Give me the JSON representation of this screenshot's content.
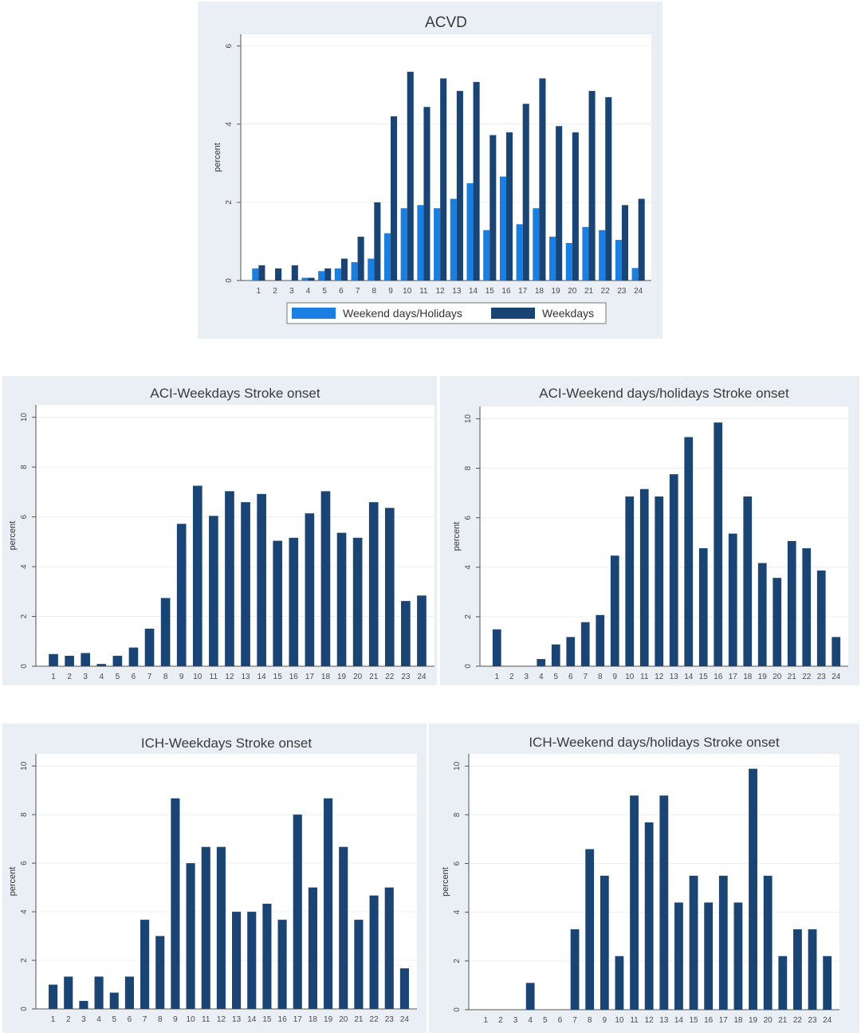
{
  "colors": {
    "weekday": "#1a4474",
    "weekend": "#1a7fe0",
    "panel_bg": "#e9eff4",
    "plot_bg": "#ffffff",
    "grid": "#eceff2",
    "axis": "#555555"
  },
  "chart_data": [
    {
      "id": "acvd",
      "type": "bar",
      "title": "ACVD",
      "xlabel": "",
      "ylabel": "percent",
      "ylim": [
        0,
        6.3
      ],
      "yticks": [
        0,
        2,
        4,
        6
      ],
      "grid": true,
      "legend_position": "bottom",
      "categories": [
        "1",
        "2",
        "3",
        "4",
        "5",
        "6",
        "7",
        "8",
        "9",
        "10",
        "11",
        "12",
        "13",
        "14",
        "15",
        "16",
        "17",
        "18",
        "19",
        "20",
        "21",
        "22",
        "23",
        "24"
      ],
      "series": [
        {
          "name": "Weekend days/Holidays",
          "color": "#1a7fe0",
          "values": [
            0.31,
            0,
            0,
            0.07,
            0.24,
            0.31,
            0.47,
            0.56,
            1.21,
            1.85,
            1.93,
            1.85,
            2.09,
            2.49,
            1.29,
            2.66,
            1.44,
            1.85,
            1.12,
            0.96,
            1.37,
            1.29,
            1.04,
            0.32
          ]
        },
        {
          "name": "Weekdays",
          "color": "#1a4474",
          "values": [
            0.39,
            0.31,
            0.39,
            0.07,
            0.31,
            0.56,
            1.12,
            2.0,
            4.2,
            5.34,
            4.44,
            5.17,
            4.85,
            5.08,
            3.72,
            3.79,
            4.52,
            5.17,
            3.95,
            3.79,
            4.85,
            4.69,
            1.93,
            2.09
          ]
        }
      ]
    },
    {
      "id": "aci-weekdays",
      "type": "bar",
      "title": "ACI-Weekdays Stroke onset",
      "xlabel": "",
      "ylabel": "percent",
      "ylim": [
        0,
        10.5
      ],
      "yticks": [
        0,
        2,
        4,
        6,
        8,
        10
      ],
      "grid": true,
      "categories": [
        "1",
        "2",
        "3",
        "4",
        "5",
        "6",
        "7",
        "8",
        "9",
        "10",
        "11",
        "12",
        "13",
        "14",
        "15",
        "16",
        "17",
        "18",
        "19",
        "20",
        "21",
        "22",
        "23",
        "24"
      ],
      "series": [
        {
          "name": "ACI-Weekdays",
          "color": "#1a4474",
          "values": [
            0.49,
            0.42,
            0.53,
            0.09,
            0.42,
            0.75,
            1.51,
            2.74,
            5.72,
            7.25,
            6.04,
            7.03,
            6.59,
            6.92,
            5.04,
            5.16,
            6.14,
            7.03,
            5.36,
            5.16,
            6.59,
            6.36,
            2.62,
            2.84
          ]
        }
      ]
    },
    {
      "id": "aci-weekend",
      "type": "bar",
      "title": "ACI-Weekend days/holidays Stroke onset",
      "xlabel": "",
      "ylabel": "percent",
      "ylim": [
        0,
        10.5
      ],
      "yticks": [
        0,
        2,
        4,
        6,
        8,
        10
      ],
      "grid": true,
      "categories": [
        "1",
        "2",
        "3",
        "4",
        "5",
        "6",
        "7",
        "8",
        "9",
        "10",
        "11",
        "12",
        "13",
        "14",
        "15",
        "16",
        "17",
        "18",
        "19",
        "20",
        "21",
        "22",
        "23",
        "24"
      ],
      "series": [
        {
          "name": "ACI-Weekend days/holidays",
          "color": "#1a4474",
          "values": [
            1.49,
            0,
            0,
            0.29,
            0.88,
            1.18,
            1.78,
            2.07,
            4.47,
            6.86,
            7.16,
            6.86,
            7.76,
            9.26,
            4.77,
            9.85,
            5.36,
            6.86,
            4.17,
            3.57,
            5.06,
            4.77,
            3.87,
            1.18
          ]
        }
      ]
    },
    {
      "id": "ich-weekdays",
      "type": "bar",
      "title": "ICH-Weekdays Stroke onset",
      "xlabel": "",
      "ylabel": "percent",
      "ylim": [
        0,
        10.5
      ],
      "yticks": [
        0,
        2,
        4,
        6,
        8,
        10
      ],
      "grid": true,
      "categories": [
        "1",
        "2",
        "3",
        "4",
        "5",
        "6",
        "7",
        "8",
        "9",
        "10",
        "11",
        "12",
        "13",
        "14",
        "15",
        "16",
        "17",
        "18",
        "19",
        "20",
        "21",
        "22",
        "23",
        "24"
      ],
      "series": [
        {
          "name": "ICH-Weekdays",
          "color": "#1a4474",
          "values": [
            1.0,
            1.33,
            0.33,
            1.33,
            0.67,
            1.33,
            3.67,
            3.0,
            8.67,
            6.0,
            6.67,
            6.67,
            4.0,
            4.0,
            4.33,
            3.67,
            8.0,
            5.0,
            8.67,
            6.67,
            3.67,
            4.67,
            5.0,
            1.67
          ]
        }
      ]
    },
    {
      "id": "ich-weekend",
      "type": "bar",
      "title": "ICH-Weekend days/holidays Stroke onset",
      "xlabel": "",
      "ylabel": "percent",
      "ylim": [
        0,
        10.5
      ],
      "yticks": [
        0,
        2,
        4,
        6,
        8,
        10
      ],
      "grid": true,
      "categories": [
        "1",
        "2",
        "3",
        "4",
        "5",
        "6",
        "7",
        "8",
        "9",
        "10",
        "11",
        "12",
        "13",
        "14",
        "15",
        "16",
        "17",
        "18",
        "19",
        "20",
        "21",
        "22",
        "23",
        "24"
      ],
      "series": [
        {
          "name": "ICH-Weekend days/holidays",
          "color": "#1a4474",
          "values": [
            0,
            0,
            0,
            1.1,
            0,
            0,
            3.3,
            6.59,
            5.5,
            2.2,
            8.79,
            7.69,
            8.79,
            4.4,
            5.5,
            4.4,
            5.5,
            4.4,
            9.89,
            5.5,
            2.2,
            3.3,
            3.3,
            2.2
          ]
        }
      ]
    }
  ]
}
